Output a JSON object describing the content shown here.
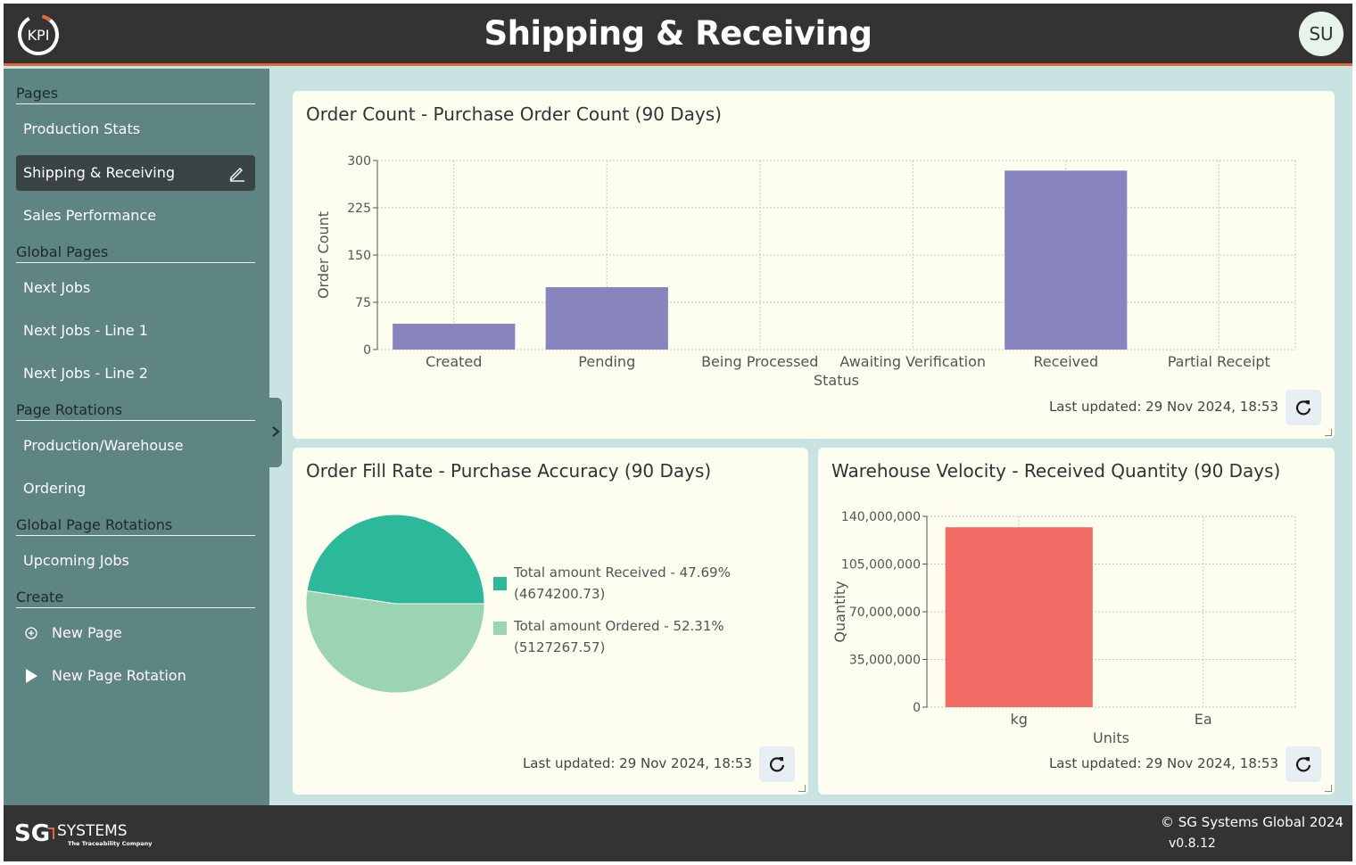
{
  "header": {
    "title": "Shipping & Receiving",
    "logo_text": "KPI",
    "avatar_initials": "SU"
  },
  "sidebar": {
    "sections": [
      {
        "heading": "Pages",
        "items": [
          {
            "label": "Production Stats"
          },
          {
            "label": "Shipping & Receiving",
            "active": true
          },
          {
            "label": "Sales Performance"
          }
        ]
      },
      {
        "heading": "Global Pages",
        "items": [
          {
            "label": "Next Jobs"
          },
          {
            "label": "Next Jobs - Line 1"
          },
          {
            "label": "Next Jobs - Line 2"
          }
        ]
      },
      {
        "heading": "Page Rotations",
        "items": [
          {
            "label": "Production/Warehouse"
          },
          {
            "label": "Ordering"
          }
        ]
      },
      {
        "heading": "Global Page Rotations",
        "items": [
          {
            "label": "Upcoming Jobs"
          }
        ]
      },
      {
        "heading": "Create",
        "items": [
          {
            "label": "New Page",
            "icon": "plus-circle-icon"
          },
          {
            "label": "New Page Rotation",
            "icon": "play-icon"
          }
        ]
      }
    ]
  },
  "cards": {
    "order_count": {
      "title": "Order Count - Purchase Order Count (90 Days)",
      "last_updated": "Last updated: 29 Nov 2024, 18:53"
    },
    "fill_rate": {
      "title": "Order Fill Rate - Purchase Accuracy (90 Days)",
      "last_updated": "Last updated: 29 Nov 2024, 18:53",
      "legend": [
        {
          "label": "Total amount Received - 47.69% (4674200.73)"
        },
        {
          "label": "Total amount Ordered - 52.31% (5127267.57)"
        }
      ]
    },
    "velocity": {
      "title": "Warehouse Velocity - Received Quantity (90 Days)",
      "last_updated": "Last updated: 29 Nov 2024, 18:53"
    }
  },
  "chart_data": [
    {
      "type": "bar",
      "title": "Order Count - Purchase Order Count (90 Days)",
      "categories": [
        "Created",
        "Pending",
        "Being Processed",
        "Awaiting Verification",
        "Received",
        "Partial Receipt"
      ],
      "values": [
        41,
        99,
        0,
        0,
        284,
        0
      ],
      "xlabel": "Status",
      "ylabel": "Order Count",
      "ylim": [
        0,
        300
      ],
      "yticks": [
        0,
        75,
        150,
        225,
        300
      ],
      "ytick_labels": [
        "0",
        "75",
        "150",
        "225",
        "300"
      ],
      "color": "#8884bd",
      "grid": true
    },
    {
      "type": "pie",
      "title": "Order Fill Rate - Purchase Accuracy (90 Days)",
      "labels": [
        "Total amount Received",
        "Total amount Ordered"
      ],
      "values": [
        4674200.73,
        5127267.57
      ],
      "percents": [
        47.69,
        52.31
      ],
      "colors": [
        "#2bb99a",
        "#9bd4b0"
      ],
      "legend": "right"
    },
    {
      "type": "bar",
      "title": "Warehouse Velocity - Received Quantity (90 Days)",
      "categories": [
        "kg",
        "Ea"
      ],
      "values": [
        132000000,
        0
      ],
      "xlabel": "Units",
      "ylabel": "Quantity",
      "ylim": [
        0,
        140000000
      ],
      "yticks": [
        0,
        35000000,
        70000000,
        105000000,
        140000000
      ],
      "ytick_labels": [
        "0",
        "35,000,000",
        "70,000,000",
        "105,000,000",
        "140,000,000"
      ],
      "color": "#f26d65",
      "grid": true
    }
  ],
  "footer": {
    "brand": "SG",
    "brand_name": "SYSTEMS",
    "tagline": "The Traceability Company",
    "copyright": "© SG Systems Global 2024",
    "version": "v0.8.12"
  }
}
